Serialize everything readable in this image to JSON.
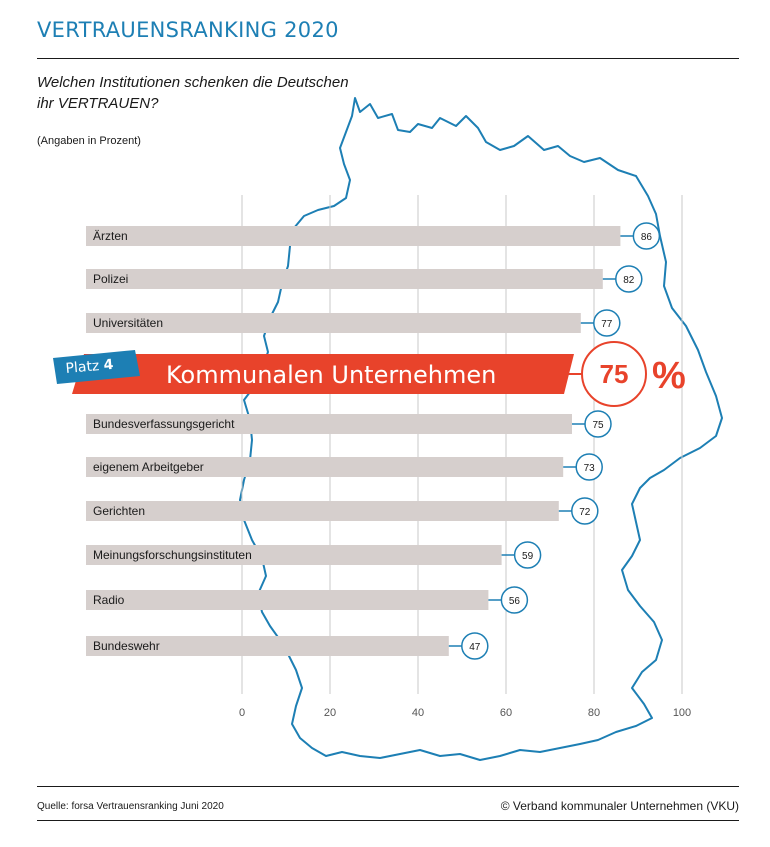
{
  "header": {
    "title": "VERTRAUENSRANKING 2020",
    "subtitle": "Welchen Institutionen schenken die Deutschen ihr VERTRAUEN?",
    "note": "(Angaben in Prozent)"
  },
  "highlight": {
    "badge_prefix": "Platz",
    "badge_rank": "4",
    "label": "Kommunalen Unternehmen",
    "value": "75",
    "unit": "%"
  },
  "footer": {
    "source": "Quelle: forsa Vertrauensranking Juni 2020",
    "copyright": "© Verband kommunaler Unternehmen (VKU)"
  },
  "colors": {
    "accent_blue": "#1d7fb4",
    "highlight_red": "#e8432b",
    "bar_gray": "#d6cfcd",
    "grid_gray": "#c9c9c9"
  },
  "chart_data": {
    "type": "bar",
    "orientation": "horizontal",
    "categories": [
      "Ärzten",
      "Polizei",
      "Universitäten",
      "Kommunalen Unternehmen",
      "Bundesverfassungsgericht",
      "eigenem Arbeitgeber",
      "Gerichten",
      "Meinungsforschungsinstituten",
      "Radio",
      "Bundeswehr"
    ],
    "values": [
      86,
      82,
      77,
      75,
      75,
      73,
      72,
      59,
      56,
      47
    ],
    "highlighted_index": 3,
    "xlim": [
      0,
      100
    ],
    "ticks": [
      0,
      20,
      40,
      60,
      80,
      100
    ],
    "grid": true
  }
}
